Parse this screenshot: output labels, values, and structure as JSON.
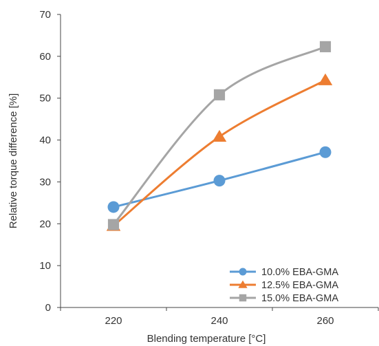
{
  "chart_data": {
    "type": "line",
    "title": "",
    "xlabel": "Blending temperature [°C]",
    "ylabel": "Relative torque difference [%]",
    "categories": [
      "220",
      "240",
      "260"
    ],
    "x": [
      220,
      240,
      260
    ],
    "xlim": [
      210,
      270
    ],
    "ylim": [
      0,
      70
    ],
    "yticks": [
      "0",
      "10",
      "20",
      "30",
      "40",
      "50",
      "60",
      "70"
    ],
    "grid": false,
    "legend_position": "bottom-right",
    "series": [
      {
        "name": "10.0% EBA-GMA",
        "values": [
          24,
          30.3,
          37.1
        ],
        "color": "#5b9bd5",
        "marker": "circle"
      },
      {
        "name": "12.5% EBA-GMA",
        "values": [
          19.5,
          40.8,
          54.3
        ],
        "color": "#ed7d31",
        "marker": "triangle"
      },
      {
        "name": "15.0% EBA-GMA",
        "values": [
          19.8,
          50.8,
          62.3
        ],
        "color": "#a5a5a5",
        "marker": "square"
      }
    ]
  }
}
